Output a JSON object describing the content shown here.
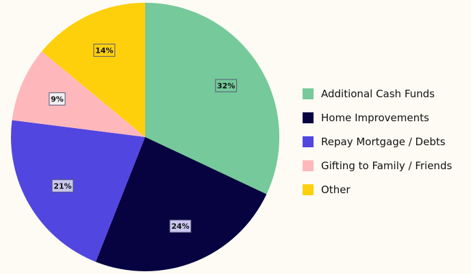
{
  "chart_data": {
    "type": "pie",
    "categories": [
      "Additional Cash Funds",
      "Home Improvements",
      "Repay Mortgage / Debts",
      "Gifting to Family / Friends",
      "Other"
    ],
    "values": [
      32,
      24,
      21,
      9,
      14
    ],
    "labels": [
      "32%",
      "24%",
      "21%",
      "9%",
      "14%"
    ],
    "colors": [
      "#76c99a",
      "#060340",
      "#5146e0",
      "#feb8bb",
      "#fed00c"
    ],
    "label_box_colors": [
      "#76c99a",
      "#c9c6ee",
      "#c9c6ee",
      "#f1f1f4",
      "#fed00c"
    ],
    "start_angle_deg": 0,
    "direction": "clockwise",
    "legend_position": "right"
  }
}
